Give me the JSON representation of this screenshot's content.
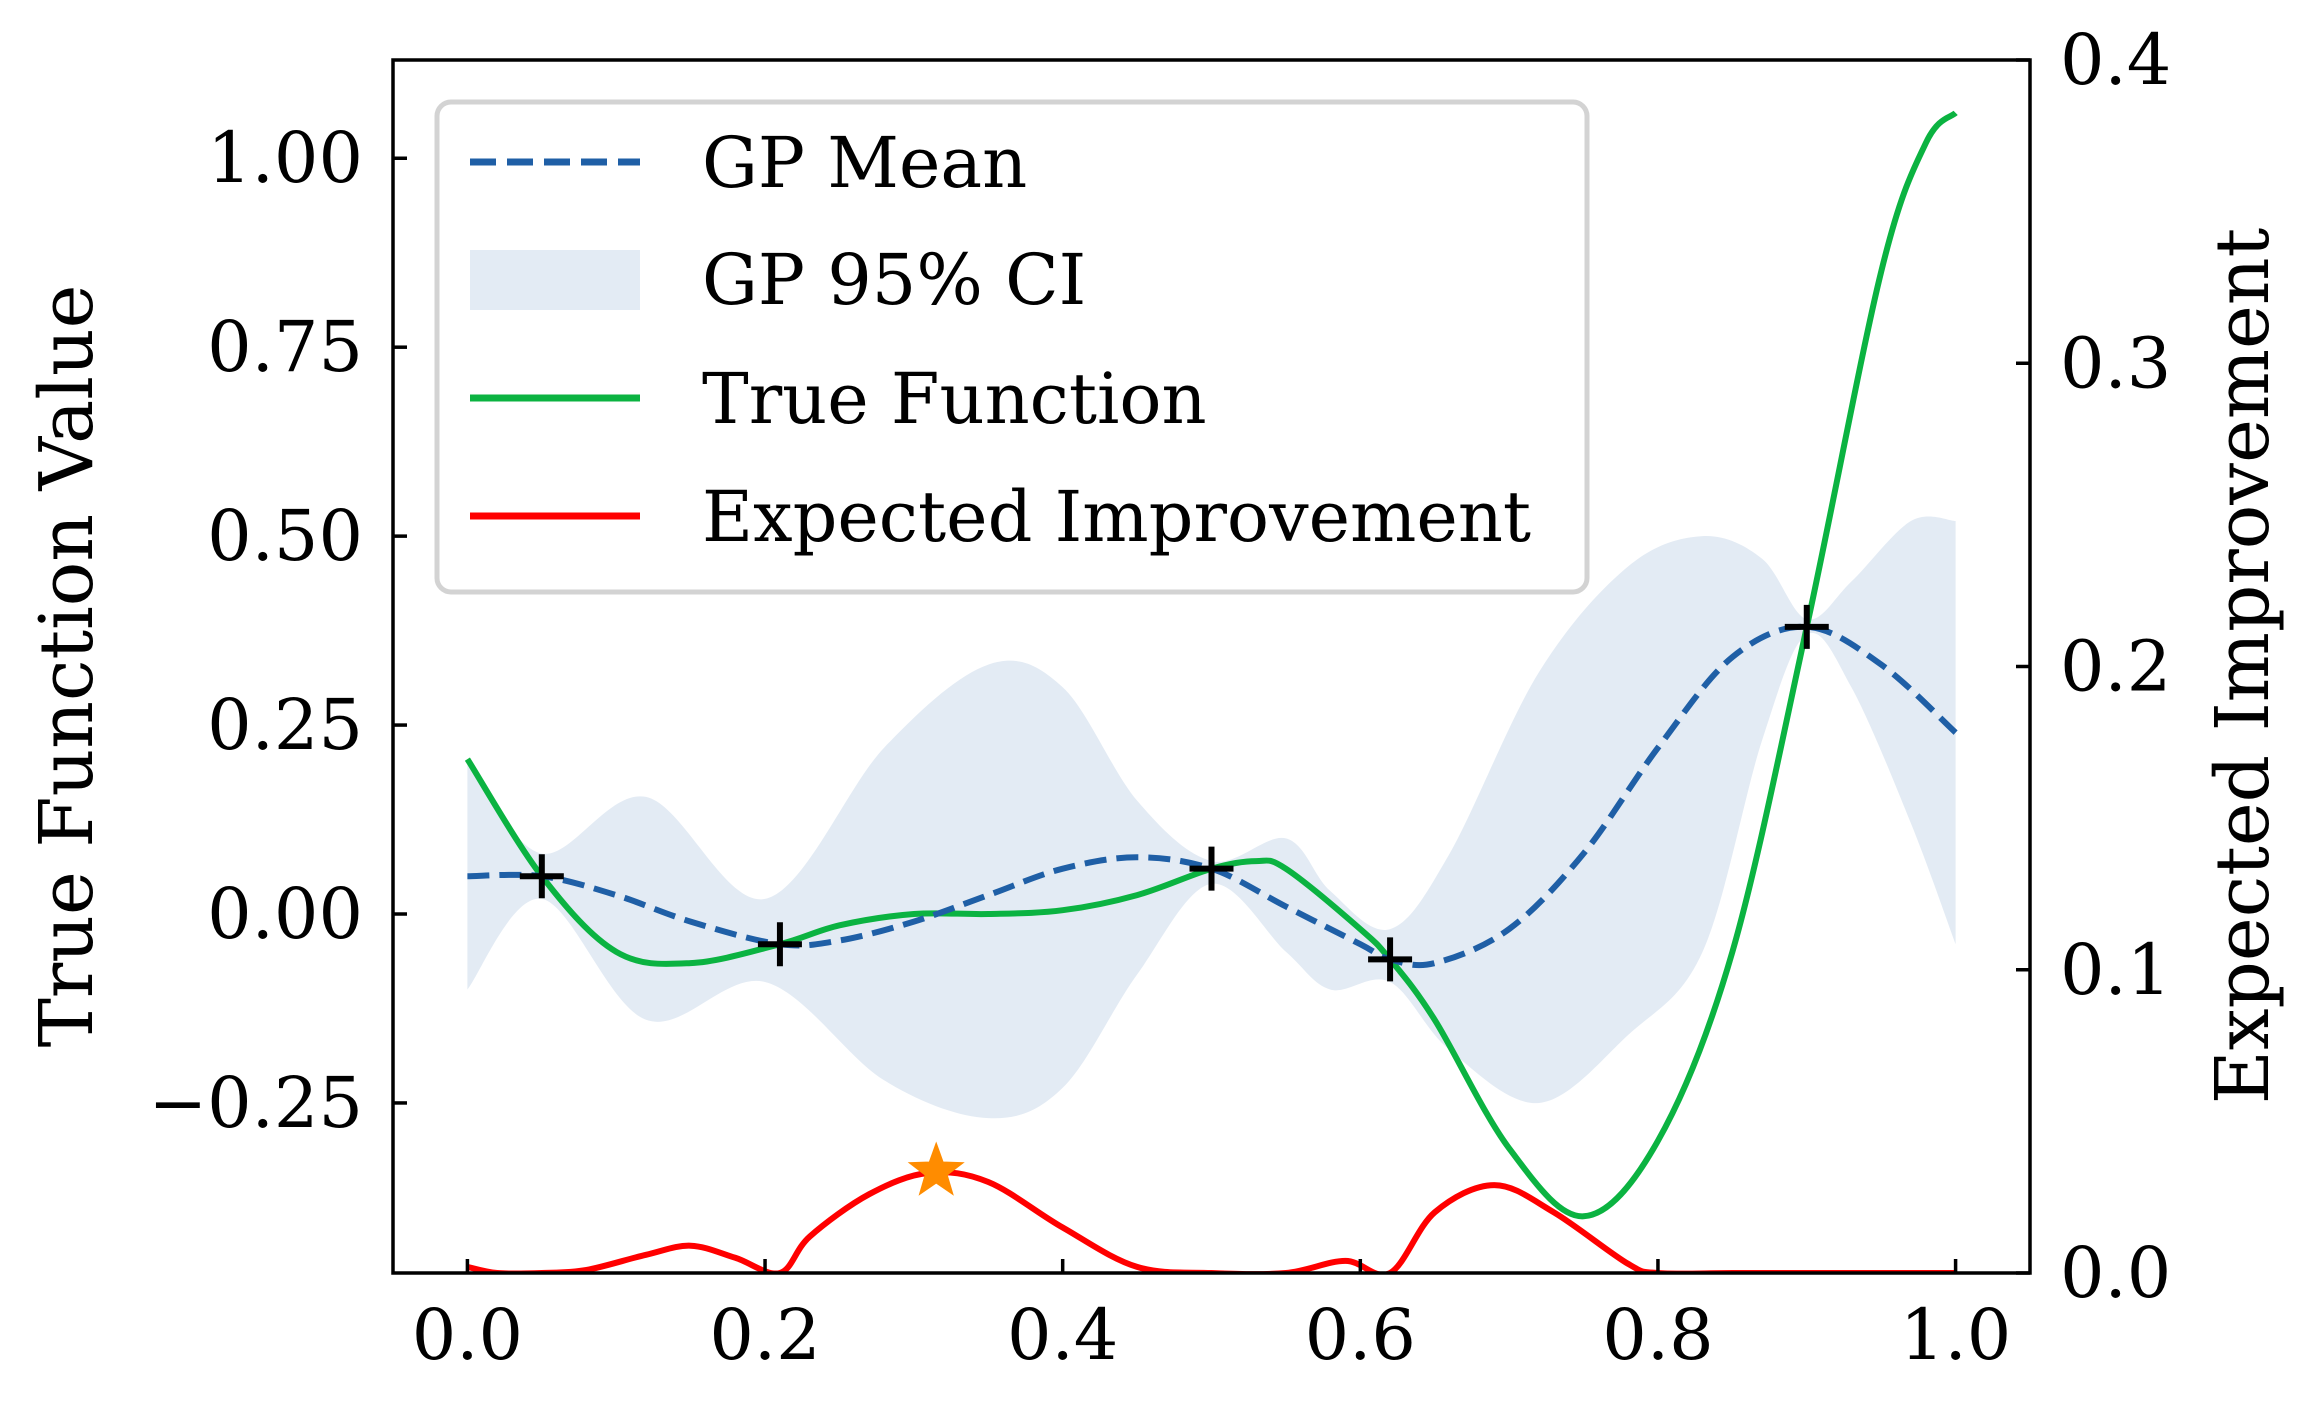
{
  "chart_data": {
    "type": "line",
    "xlabel": "",
    "ylabel": "True Function Value",
    "y2label": "Expected Improvement",
    "xlim": [
      -0.05,
      1.05
    ],
    "ylim": [
      -0.475,
      1.13
    ],
    "y2lim": [
      0.0,
      0.4
    ],
    "x_ticks": [
      0.0,
      0.2,
      0.4,
      0.6,
      0.8,
      1.0
    ],
    "x_tick_labels": [
      "0.0",
      "0.2",
      "0.4",
      "0.6",
      "0.8",
      "1.0"
    ],
    "y_ticks": [
      -0.25,
      0.0,
      0.25,
      0.5,
      0.75,
      1.0
    ],
    "y_tick_labels": [
      "−0.25",
      "0.00",
      "0.25",
      "0.50",
      "0.75",
      "1.00"
    ],
    "y2_ticks": [
      0.0,
      0.1,
      0.2,
      0.3,
      0.4
    ],
    "y2_tick_labels": [
      "0.0",
      "0.1",
      "0.2",
      "0.3",
      "0.4"
    ],
    "grid": false,
    "legend_position": "top-left",
    "legend": [
      {
        "label": "GP Mean",
        "style": "dashed-line",
        "color": "#1f5fa6"
      },
      {
        "label": "GP 95% CI",
        "style": "patch",
        "color": "#e3ebf4"
      },
      {
        "label": "True Function",
        "style": "line",
        "color": "#0bb341"
      },
      {
        "label": "Expected Improvement",
        "style": "line",
        "color": "#ff0000"
      }
    ],
    "series": [
      {
        "name": "GP Mean",
        "axis": "left",
        "color": "#1f5fa6",
        "x": [
          0.0,
          0.05,
          0.1,
          0.15,
          0.21,
          0.25,
          0.3,
          0.35,
          0.4,
          0.45,
          0.5,
          0.55,
          0.6,
          0.62,
          0.65,
          0.7,
          0.75,
          0.8,
          0.85,
          0.9,
          0.95,
          1.0
        ],
        "y": [
          0.05,
          0.05,
          0.025,
          -0.01,
          -0.04,
          -0.035,
          -0.01,
          0.025,
          0.06,
          0.075,
          0.06,
          0.01,
          -0.04,
          -0.06,
          -0.065,
          -0.02,
          0.08,
          0.22,
          0.34,
          0.38,
          0.33,
          0.24
        ]
      },
      {
        "name": "True Function",
        "axis": "left",
        "color": "#0bb341",
        "x": [
          0.0,
          0.05,
          0.1,
          0.15,
          0.21,
          0.25,
          0.3,
          0.35,
          0.4,
          0.45,
          0.5,
          0.53,
          0.55,
          0.6,
          0.62,
          0.65,
          0.7,
          0.75,
          0.8,
          0.85,
          0.9,
          0.95,
          0.98,
          1.0
        ],
        "y": [
          0.205,
          0.05,
          -0.05,
          -0.065,
          -0.04,
          -0.015,
          0.0,
          0.0,
          0.005,
          0.025,
          0.06,
          0.07,
          0.06,
          -0.02,
          -0.06,
          -0.14,
          -0.31,
          -0.4,
          -0.3,
          -0.05,
          0.38,
          0.85,
          1.02,
          1.06
        ]
      },
      {
        "name": "Expected Improvement",
        "axis": "right",
        "color": "#ff0000",
        "x": [
          0.0,
          0.02,
          0.05,
          0.08,
          0.12,
          0.15,
          0.18,
          0.21,
          0.23,
          0.27,
          0.31,
          0.35,
          0.4,
          0.45,
          0.5,
          0.55,
          0.59,
          0.62,
          0.65,
          0.69,
          0.73,
          0.78,
          0.8,
          0.85,
          0.9,
          0.95,
          1.0
        ],
        "y": [
          0.002,
          0.0,
          0.0,
          0.001,
          0.006,
          0.009,
          0.005,
          0.0,
          0.012,
          0.026,
          0.033,
          0.03,
          0.015,
          0.002,
          0.0,
          0.0,
          0.004,
          0.0,
          0.02,
          0.029,
          0.02,
          0.003,
          0.0,
          0.0,
          0.0,
          0.0,
          0.0
        ]
      }
    ],
    "confidence_band": {
      "name": "GP 95% CI",
      "axis": "left",
      "color": "#e3ebf4",
      "x": [
        0.0,
        0.05,
        0.12,
        0.2,
        0.28,
        0.35,
        0.4,
        0.45,
        0.5,
        0.55,
        0.58,
        0.62,
        0.66,
        0.72,
        0.78,
        0.83,
        0.87,
        0.9,
        0.93,
        0.97,
        1.0
      ],
      "upper": [
        0.2,
        0.08,
        0.155,
        0.02,
        0.22,
        0.33,
        0.3,
        0.15,
        0.07,
        0.1,
        0.03,
        -0.02,
        0.08,
        0.32,
        0.46,
        0.5,
        0.47,
        0.39,
        0.44,
        0.52,
        0.52
      ],
      "lower": [
        -0.1,
        0.02,
        -0.14,
        -0.09,
        -0.22,
        -0.27,
        -0.23,
        -0.08,
        0.04,
        -0.05,
        -0.1,
        -0.09,
        -0.18,
        -0.25,
        -0.16,
        -0.05,
        0.23,
        0.37,
        0.3,
        0.12,
        -0.04
      ]
    },
    "observations": {
      "name": "Observations",
      "axis": "left",
      "marker": "plus",
      "color": "#000000",
      "x": [
        0.05,
        0.21,
        0.5,
        0.62,
        0.9
      ],
      "y": [
        0.05,
        -0.04,
        0.06,
        -0.06,
        0.38
      ]
    },
    "next_point": {
      "marker": "star",
      "color": "#ff8c00",
      "axis": "right",
      "x": 0.315,
      "y": 0.0335
    }
  }
}
